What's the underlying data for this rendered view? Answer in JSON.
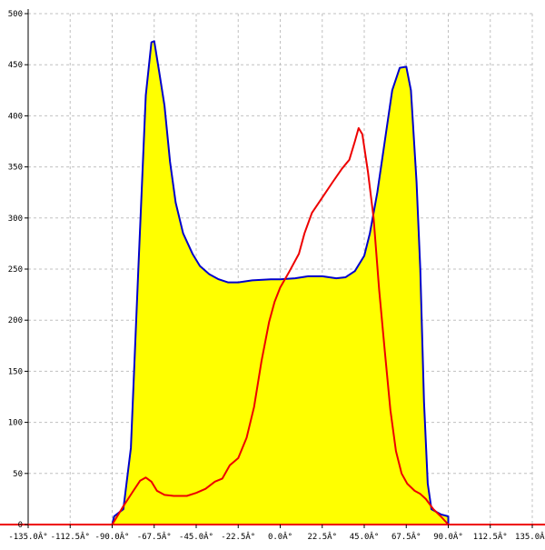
{
  "chart_data": {
    "type": "area",
    "xlim": [
      -135,
      135
    ],
    "ylim": [
      0,
      500
    ],
    "x_ticks": [
      -135,
      -112.5,
      -90,
      -67.5,
      -45,
      -22.5,
      0,
      22.5,
      45,
      67.5,
      90,
      112.5,
      135
    ],
    "x_tick_labels": [
      "-135.0Â°",
      "-112.5Â°",
      "-90.0Â°",
      "-67.5Â°",
      "-45.0Â°",
      "-22.5Â°",
      "0.0Â°",
      "22.5Â°",
      "45.0Â°",
      "67.5Â°",
      "90.0Â°",
      "112.5Â°",
      "135.0Â°"
    ],
    "y_ticks": [
      0,
      50,
      100,
      150,
      200,
      250,
      300,
      350,
      400,
      450,
      500
    ],
    "y_tick_labels": [
      "0",
      "50",
      "100",
      "150",
      "200",
      "250",
      "300",
      "350",
      "400",
      "450",
      "500"
    ],
    "grid": true,
    "series": [
      {
        "color": "#0000cc",
        "fill": "#ffff00",
        "points": [
          [
            -90,
            0
          ],
          [
            -89,
            8
          ],
          [
            -84,
            15
          ],
          [
            -80,
            75
          ],
          [
            -76,
            250
          ],
          [
            -72,
            420
          ],
          [
            -69,
            472
          ],
          [
            -67.5,
            473
          ],
          [
            -65,
            445
          ],
          [
            -62,
            410
          ],
          [
            -59,
            355
          ],
          [
            -56,
            315
          ],
          [
            -52,
            285
          ],
          [
            -47,
            265
          ],
          [
            -43,
            253
          ],
          [
            -38,
            245
          ],
          [
            -33,
            240
          ],
          [
            -28,
            237
          ],
          [
            -22.5,
            237
          ],
          [
            -15,
            239
          ],
          [
            -5,
            240
          ],
          [
            0,
            240
          ],
          [
            8,
            241
          ],
          [
            15,
            243
          ],
          [
            22.5,
            243
          ],
          [
            30,
            241
          ],
          [
            35,
            242
          ],
          [
            40,
            248
          ],
          [
            45,
            263
          ],
          [
            48,
            285
          ],
          [
            52,
            325
          ],
          [
            56,
            375
          ],
          [
            60,
            425
          ],
          [
            64,
            447
          ],
          [
            67.5,
            448
          ],
          [
            70,
            425
          ],
          [
            73,
            335
          ],
          [
            75,
            250
          ],
          [
            77,
            120
          ],
          [
            79,
            40
          ],
          [
            81,
            15
          ],
          [
            86,
            10
          ],
          [
            90,
            8
          ],
          [
            90,
            0
          ]
        ]
      },
      {
        "color": "#ee0000",
        "points": [
          [
            -90,
            0
          ],
          [
            -88,
            6
          ],
          [
            -84,
            18
          ],
          [
            -79,
            32
          ],
          [
            -75,
            43
          ],
          [
            -72,
            46
          ],
          [
            -69,
            42
          ],
          [
            -66,
            33
          ],
          [
            -62,
            29
          ],
          [
            -57,
            28
          ],
          [
            -50,
            28
          ],
          [
            -45,
            31
          ],
          [
            -40,
            35
          ],
          [
            -35,
            42
          ],
          [
            -31,
            45
          ],
          [
            -27,
            58
          ],
          [
            -22.5,
            65
          ],
          [
            -18,
            85
          ],
          [
            -14,
            115
          ],
          [
            -10,
            160
          ],
          [
            -6,
            198
          ],
          [
            -3,
            218
          ],
          [
            0,
            232
          ],
          [
            5,
            248
          ],
          [
            10,
            265
          ],
          [
            13,
            285
          ],
          [
            17,
            305
          ],
          [
            22.5,
            320
          ],
          [
            28,
            335
          ],
          [
            33,
            348
          ],
          [
            37,
            357
          ],
          [
            40,
            375
          ],
          [
            42,
            388
          ],
          [
            44,
            382
          ],
          [
            47,
            345
          ],
          [
            50,
            300
          ],
          [
            53,
            230
          ],
          [
            56,
            170
          ],
          [
            59,
            112
          ],
          [
            62,
            72
          ],
          [
            65,
            50
          ],
          [
            68,
            40
          ],
          [
            72,
            33
          ],
          [
            75,
            30
          ],
          [
            78,
            25
          ],
          [
            82,
            15
          ],
          [
            86,
            8
          ],
          [
            90,
            0
          ]
        ]
      }
    ]
  }
}
